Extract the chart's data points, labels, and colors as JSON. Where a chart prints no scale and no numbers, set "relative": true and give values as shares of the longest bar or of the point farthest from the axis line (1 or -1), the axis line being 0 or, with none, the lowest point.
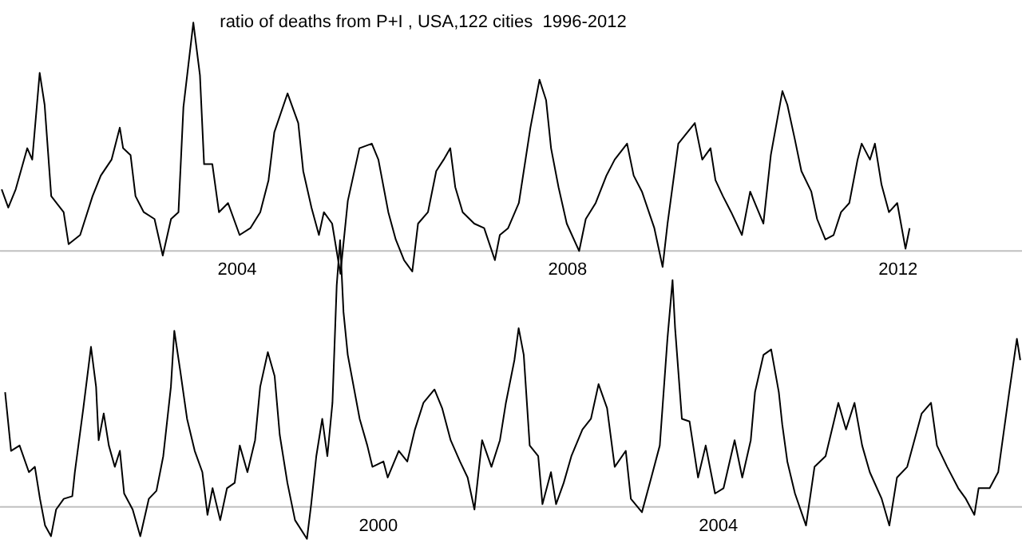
{
  "chart_data": [
    {
      "type": "line",
      "title": "ratio of deaths from P+I , USA,122 cities  1996-2012",
      "relative": true,
      "color": "#000000",
      "xlim": [
        2001.13,
        2013.5
      ],
      "xticks": [
        2004,
        2008,
        2012
      ],
      "x": [
        2001.15,
        2001.23,
        2001.32,
        2001.46,
        2001.52,
        2001.61,
        2001.67,
        2001.75,
        2001.9,
        2001.96,
        2002.1,
        2002.25,
        2002.35,
        2002.48,
        2002.58,
        2002.62,
        2002.71,
        2002.77,
        2002.87,
        2003.0,
        2003.1,
        2003.2,
        2003.29,
        2003.35,
        2003.47,
        2003.55,
        2003.6,
        2003.7,
        2003.78,
        2003.89,
        2004.03,
        2004.16,
        2004.28,
        2004.38,
        2004.45,
        2004.61,
        2004.74,
        2004.8,
        2004.9,
        2004.99,
        2005.05,
        2005.15,
        2005.25,
        2005.34,
        2005.48,
        2005.63,
        2005.71,
        2005.83,
        2005.92,
        2006.02,
        2006.12,
        2006.19,
        2006.31,
        2006.41,
        2006.5,
        2006.58,
        2006.64,
        2006.73,
        2006.87,
        2006.99,
        2007.12,
        2007.18,
        2007.28,
        2007.41,
        2007.55,
        2007.66,
        2007.74,
        2007.8,
        2007.89,
        2007.99,
        2008.14,
        2008.22,
        2008.34,
        2008.47,
        2008.57,
        2008.72,
        2008.8,
        2008.9,
        2009.05,
        2009.15,
        2009.21,
        2009.34,
        2009.54,
        2009.63,
        2009.73,
        2009.79,
        2009.88,
        2009.98,
        2010.11,
        2010.21,
        2010.37,
        2010.46,
        2010.6,
        2010.66,
        2010.75,
        2010.83,
        2010.95,
        2011.02,
        2011.12,
        2011.22,
        2011.31,
        2011.41,
        2011.51,
        2011.56,
        2011.66,
        2011.72,
        2011.8,
        2011.89,
        2011.99,
        2012.09,
        2012.14
      ],
      "values": [
        0.27,
        0.19,
        0.27,
        0.45,
        0.4,
        0.78,
        0.64,
        0.24,
        0.17,
        0.03,
        0.07,
        0.24,
        0.33,
        0.4,
        0.54,
        0.45,
        0.42,
        0.24,
        0.17,
        0.14,
        -0.02,
        0.14,
        0.17,
        0.63,
        1.0,
        0.77,
        0.38,
        0.38,
        0.17,
        0.21,
        0.07,
        0.1,
        0.17,
        0.31,
        0.52,
        0.69,
        0.56,
        0.35,
        0.19,
        0.07,
        0.17,
        0.12,
        -0.1,
        0.22,
        0.45,
        0.47,
        0.4,
        0.17,
        0.05,
        -0.04,
        -0.09,
        0.12,
        0.17,
        0.35,
        0.4,
        0.45,
        0.28,
        0.17,
        0.12,
        0.1,
        -0.04,
        0.07,
        0.1,
        0.21,
        0.54,
        0.75,
        0.66,
        0.45,
        0.28,
        0.12,
        0.0,
        0.14,
        0.21,
        0.33,
        0.4,
        0.47,
        0.33,
        0.26,
        0.1,
        -0.07,
        0.12,
        0.47,
        0.56,
        0.4,
        0.45,
        0.31,
        0.24,
        0.17,
        0.07,
        0.26,
        0.12,
        0.42,
        0.7,
        0.64,
        0.49,
        0.35,
        0.26,
        0.14,
        0.05,
        0.07,
        0.17,
        0.21,
        0.4,
        0.47,
        0.4,
        0.47,
        0.29,
        0.17,
        0.21,
        0.01,
        0.1
      ]
    },
    {
      "type": "line",
      "relative": true,
      "color": "#000000",
      "xlim": [
        1995.55,
        2007.57
      ],
      "xticks": [
        2000,
        2004
      ],
      "x": [
        1995.61,
        1995.68,
        1995.78,
        1995.89,
        1995.96,
        1996.02,
        1996.08,
        1996.15,
        1996.21,
        1996.3,
        1996.4,
        1996.43,
        1996.53,
        1996.62,
        1996.68,
        1996.71,
        1996.77,
        1996.83,
        1996.9,
        1996.96,
        1997.01,
        1997.11,
        1997.2,
        1997.3,
        1997.39,
        1997.47,
        1997.56,
        1997.6,
        1997.67,
        1997.75,
        1997.84,
        1997.93,
        1997.99,
        1998.05,
        1998.14,
        1998.22,
        1998.31,
        1998.37,
        1998.46,
        1998.55,
        1998.61,
        1998.7,
        1998.78,
        1998.84,
        1998.93,
        1999.02,
        1999.16,
        1999.21,
        1999.27,
        1999.34,
        1999.4,
        1999.46,
        1999.51,
        1999.55,
        1999.59,
        1999.64,
        1999.78,
        1999.87,
        1999.93,
        2000.06,
        2000.11,
        2000.24,
        2000.34,
        2000.43,
        2000.53,
        2000.66,
        2000.75,
        2000.85,
        2000.96,
        2001.05,
        2001.13,
        2001.22,
        2001.33,
        2001.43,
        2001.5,
        2001.6,
        2001.65,
        2001.71,
        2001.78,
        2001.88,
        2001.93,
        2002.03,
        2002.09,
        2002.18,
        2002.27,
        2002.4,
        2002.5,
        2002.59,
        2002.69,
        2002.78,
        2002.91,
        2002.97,
        2003.1,
        2003.21,
        2003.31,
        2003.4,
        2003.46,
        2003.49,
        2003.57,
        2003.66,
        2003.76,
        2003.85,
        2003.96,
        2004.06,
        2004.19,
        2004.28,
        2004.38,
        2004.43,
        2004.53,
        2004.62,
        2004.71,
        2004.75,
        2004.81,
        2004.9,
        2005.03,
        2005.13,
        2005.26,
        2005.35,
        2005.41,
        2005.5,
        2005.6,
        2005.69,
        2005.78,
        2005.92,
        2006.01,
        2006.1,
        2006.22,
        2006.39,
        2006.5,
        2006.57,
        2006.69,
        2006.82,
        2006.91,
        2007.01,
        2007.06,
        2007.19,
        2007.29,
        2007.42,
        2007.51,
        2007.55
      ],
      "values": [
        0.43,
        0.21,
        0.23,
        0.13,
        0.15,
        0.03,
        -0.07,
        -0.11,
        -0.01,
        0.03,
        0.04,
        0.13,
        0.37,
        0.6,
        0.45,
        0.25,
        0.35,
        0.23,
        0.15,
        0.21,
        0.05,
        -0.01,
        -0.11,
        0.03,
        0.06,
        0.19,
        0.45,
        0.66,
        0.51,
        0.33,
        0.21,
        0.13,
        -0.03,
        0.07,
        -0.05,
        0.07,
        0.09,
        0.23,
        0.13,
        0.25,
        0.45,
        0.58,
        0.49,
        0.27,
        0.09,
        -0.05,
        -0.12,
        0.01,
        0.19,
        0.33,
        0.19,
        0.39,
        0.83,
        1.0,
        0.73,
        0.57,
        0.33,
        0.23,
        0.15,
        0.17,
        0.11,
        0.21,
        0.17,
        0.29,
        0.39,
        0.44,
        0.37,
        0.25,
        0.17,
        0.11,
        -0.01,
        0.25,
        0.15,
        0.25,
        0.39,
        0.55,
        0.67,
        0.57,
        0.23,
        0.19,
        0.01,
        0.13,
        0.01,
        0.09,
        0.19,
        0.29,
        0.33,
        0.46,
        0.37,
        0.15,
        0.21,
        0.03,
        -0.02,
        0.11,
        0.23,
        0.63,
        0.85,
        0.67,
        0.33,
        0.32,
        0.11,
        0.23,
        0.05,
        0.07,
        0.25,
        0.11,
        0.25,
        0.43,
        0.57,
        0.59,
        0.43,
        0.31,
        0.17,
        0.05,
        -0.07,
        0.15,
        0.19,
        0.31,
        0.39,
        0.29,
        0.39,
        0.23,
        0.13,
        0.03,
        -0.07,
        0.11,
        0.15,
        0.35,
        0.39,
        0.23,
        0.15,
        0.07,
        0.03,
        -0.03,
        0.07,
        0.07,
        0.13,
        0.43,
        0.63,
        0.55
      ]
    }
  ]
}
